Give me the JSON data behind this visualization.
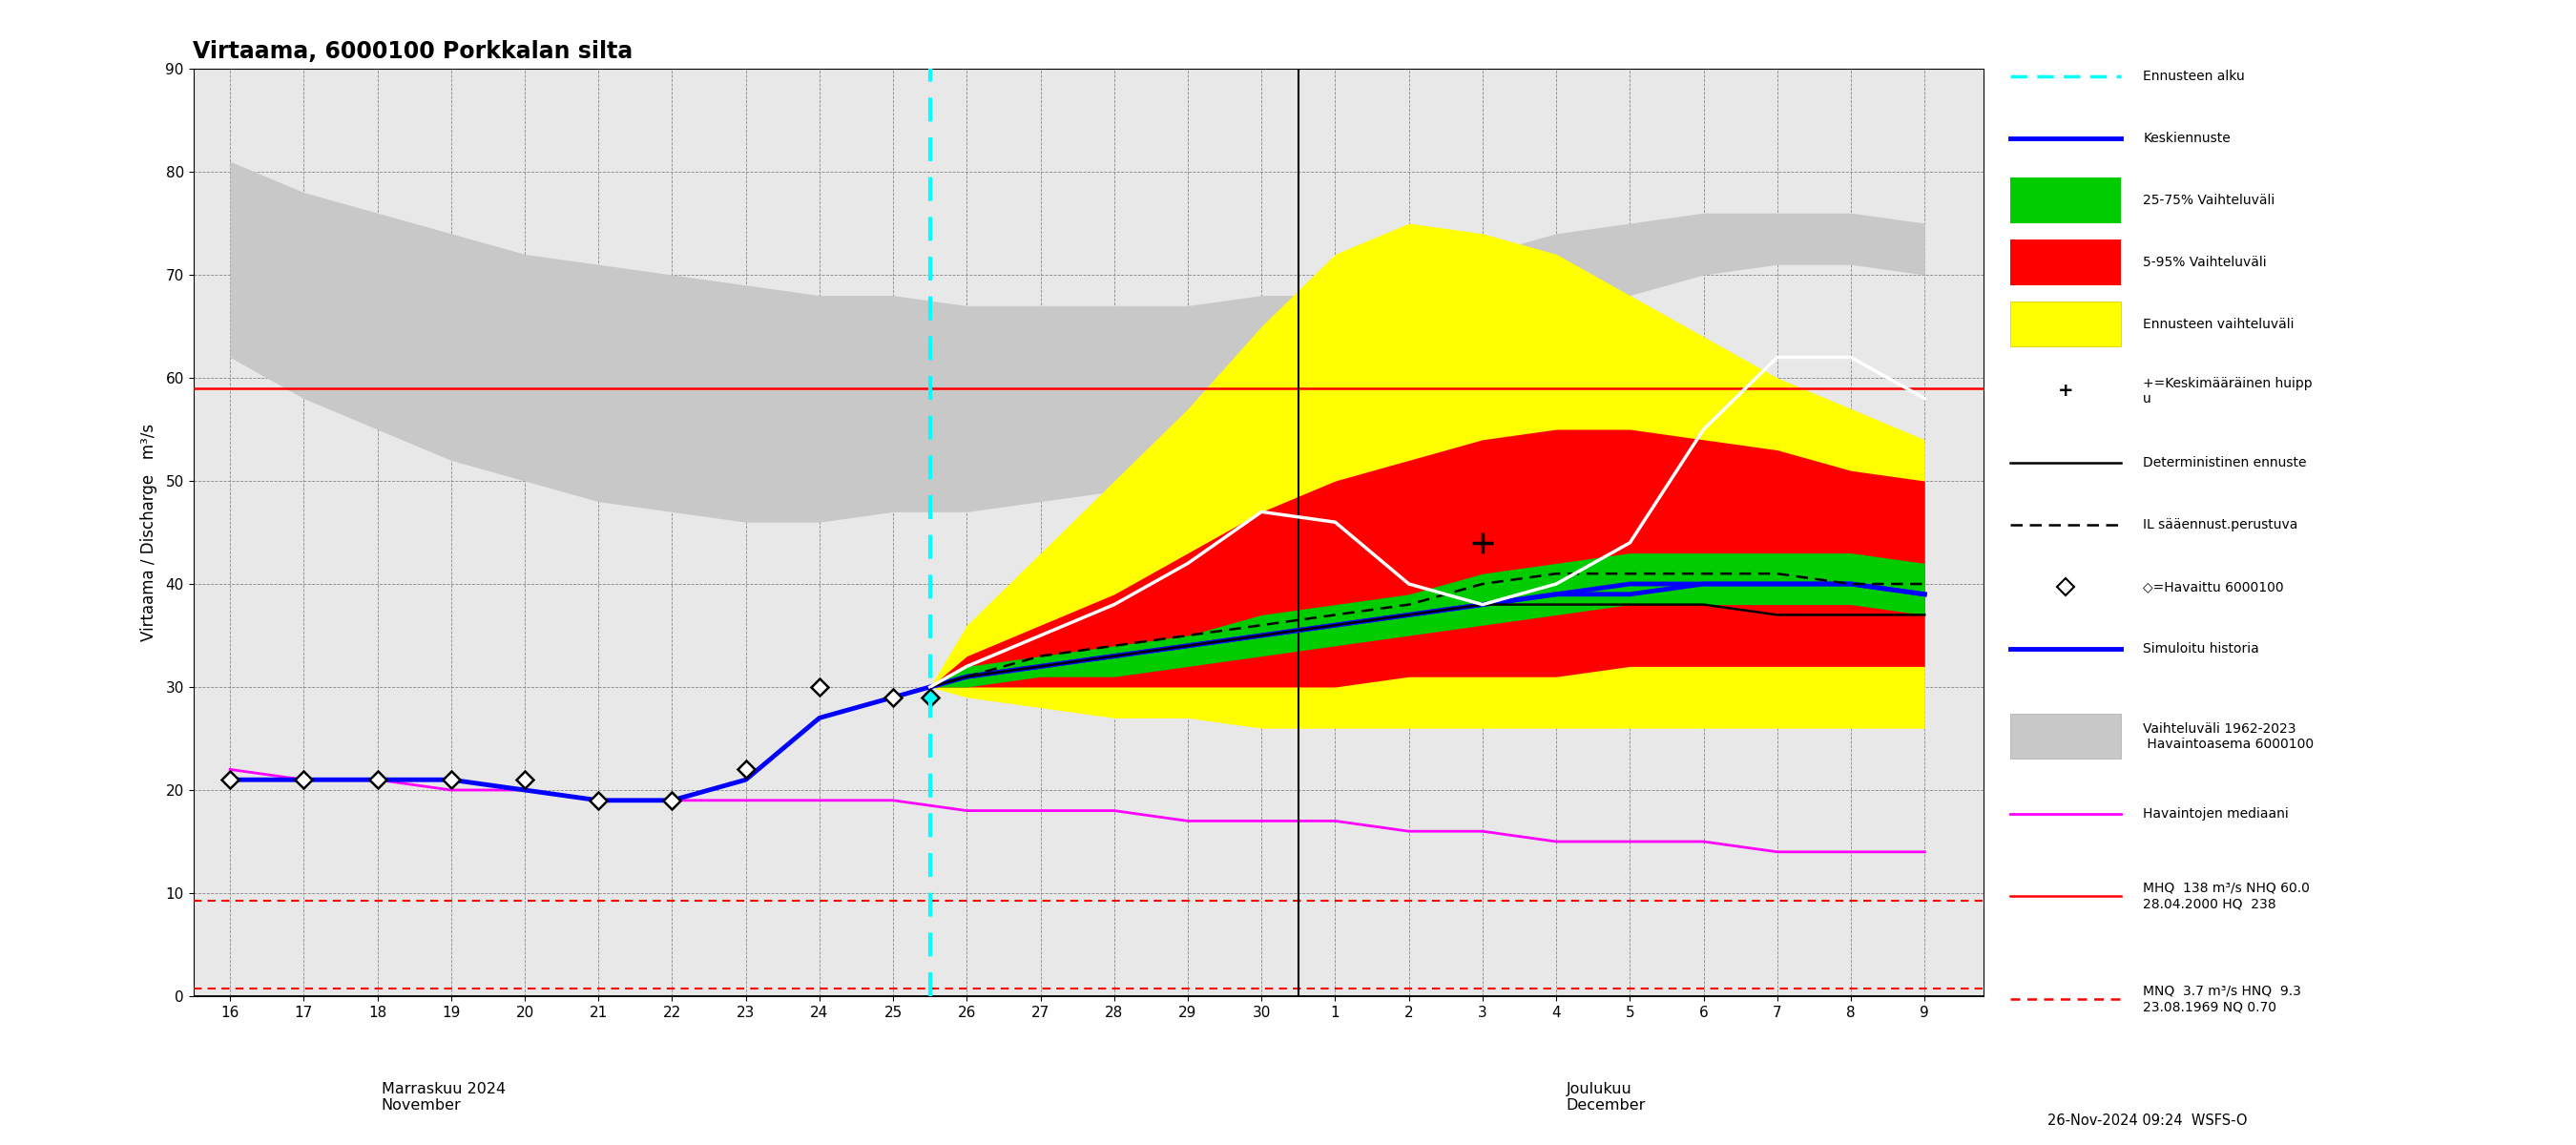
{
  "title": "Virtaama, 6000100 Porkkalan silta",
  "ylabel_left": "Virtaama / Discharge   m³/s",
  "ylim": [
    0,
    90
  ],
  "yticks": [
    0,
    10,
    20,
    30,
    40,
    50,
    60,
    70,
    80,
    90
  ],
  "xlim_lo": 15.5,
  "xlim_hi": 39.8,
  "forecast_start_x": 25.5,
  "MHQ": 59.0,
  "MNQ_line": 9.3,
  "HNQ_line": 0.7,
  "footnote": "26-Nov-2024 09:24  WSFS-O",
  "observed_x": [
    16,
    17,
    18,
    19,
    20,
    21,
    22,
    23,
    24,
    25,
    25.5
  ],
  "observed_y": [
    21,
    21,
    21,
    21,
    21,
    19,
    19,
    22,
    30,
    29,
    29
  ],
  "simulated_x": [
    16,
    17,
    18,
    19,
    20,
    21,
    22,
    23,
    24,
    25,
    25.5,
    26,
    27,
    28,
    29,
    30,
    31,
    32,
    33,
    34,
    35,
    36,
    37,
    38,
    39
  ],
  "simulated_y": [
    21,
    21,
    21,
    21,
    20,
    19,
    19,
    21,
    27,
    29,
    30,
    31,
    32,
    33,
    34,
    35,
    36,
    37,
    38,
    39,
    39,
    40,
    40,
    40,
    39
  ],
  "mean_forecast_x": [
    25.5,
    26,
    27,
    28,
    29,
    30,
    31,
    32,
    33,
    34,
    35,
    36,
    37,
    38,
    39
  ],
  "mean_forecast_y": [
    30,
    31,
    32,
    33,
    34,
    35,
    36,
    37,
    38,
    39,
    40,
    40,
    40,
    40,
    39
  ],
  "det_forecast_x": [
    25.5,
    26,
    27,
    28,
    29,
    30,
    31,
    32,
    33,
    34,
    35,
    36,
    37,
    38,
    39
  ],
  "det_forecast_y": [
    30,
    31,
    32,
    33,
    34,
    35,
    36,
    37,
    38,
    38,
    38,
    38,
    37,
    37,
    37
  ],
  "il_forecast_x": [
    25.5,
    26,
    27,
    28,
    29,
    30,
    31,
    32,
    33,
    34,
    35,
    36,
    37,
    38,
    39
  ],
  "il_forecast_y": [
    30,
    31,
    33,
    34,
    35,
    36,
    37,
    38,
    40,
    41,
    41,
    41,
    41,
    40,
    40
  ],
  "white_det_x": [
    25.5,
    26,
    27,
    28,
    29,
    30,
    31,
    32,
    33,
    34,
    35,
    36,
    37,
    38,
    39
  ],
  "white_det_y": [
    30,
    32,
    35,
    38,
    42,
    47,
    46,
    40,
    38,
    40,
    44,
    55,
    62,
    62,
    58
  ],
  "band_25_75_x": [
    25.5,
    26,
    27,
    28,
    29,
    30,
    31,
    32,
    33,
    34,
    35,
    36,
    37,
    38,
    39
  ],
  "band_25_75_lo": [
    30,
    30,
    31,
    31,
    32,
    33,
    34,
    35,
    36,
    37,
    38,
    38,
    38,
    38,
    37
  ],
  "band_25_75_hi": [
    30,
    32,
    33,
    34,
    35,
    37,
    38,
    39,
    41,
    42,
    43,
    43,
    43,
    43,
    42
  ],
  "band_5_95_x": [
    25.5,
    26,
    27,
    28,
    29,
    30,
    31,
    32,
    33,
    34,
    35,
    36,
    37,
    38,
    39
  ],
  "band_5_95_lo": [
    30,
    30,
    30,
    30,
    30,
    30,
    30,
    31,
    31,
    31,
    32,
    32,
    32,
    32,
    32
  ],
  "band_5_95_hi": [
    30,
    33,
    36,
    39,
    43,
    47,
    50,
    52,
    54,
    55,
    55,
    54,
    53,
    51,
    50
  ],
  "band_ennuste_x": [
    25.5,
    26,
    27,
    28,
    29,
    30,
    31,
    32,
    33,
    34,
    35,
    36,
    37,
    38,
    39
  ],
  "band_ennuste_lo": [
    30,
    29,
    28,
    27,
    27,
    26,
    26,
    26,
    26,
    26,
    26,
    26,
    26,
    26,
    26
  ],
  "band_ennuste_hi": [
    30,
    36,
    43,
    50,
    57,
    65,
    72,
    75,
    74,
    72,
    68,
    64,
    60,
    57,
    54
  ],
  "hist_band_x": [
    16,
    17,
    18,
    19,
    20,
    21,
    22,
    23,
    24,
    25,
    26,
    27,
    28,
    29,
    30,
    31,
    32,
    33,
    34,
    35,
    36,
    37,
    38,
    39
  ],
  "hist_band_lo": [
    62,
    58,
    55,
    52,
    50,
    48,
    47,
    46,
    46,
    47,
    47,
    48,
    49,
    50,
    52,
    54,
    57,
    61,
    65,
    68,
    70,
    71,
    71,
    70
  ],
  "hist_band_hi": [
    81,
    78,
    76,
    74,
    72,
    71,
    70,
    69,
    68,
    68,
    67,
    67,
    67,
    67,
    68,
    68,
    70,
    72,
    74,
    75,
    76,
    76,
    76,
    75
  ],
  "median_x": [
    16,
    17,
    18,
    19,
    20,
    21,
    22,
    23,
    24,
    25,
    26,
    27,
    28,
    29,
    30,
    31,
    32,
    33,
    34,
    35,
    36,
    37,
    38,
    39
  ],
  "median_y": [
    22,
    21,
    21,
    20,
    20,
    19,
    19,
    19,
    19,
    19,
    18,
    18,
    18,
    17,
    17,
    17,
    16,
    16,
    15,
    15,
    15,
    14,
    14,
    14
  ],
  "peak_marker_x": 33,
  "peak_marker_y": 44,
  "background_color": "#e8e8e8"
}
